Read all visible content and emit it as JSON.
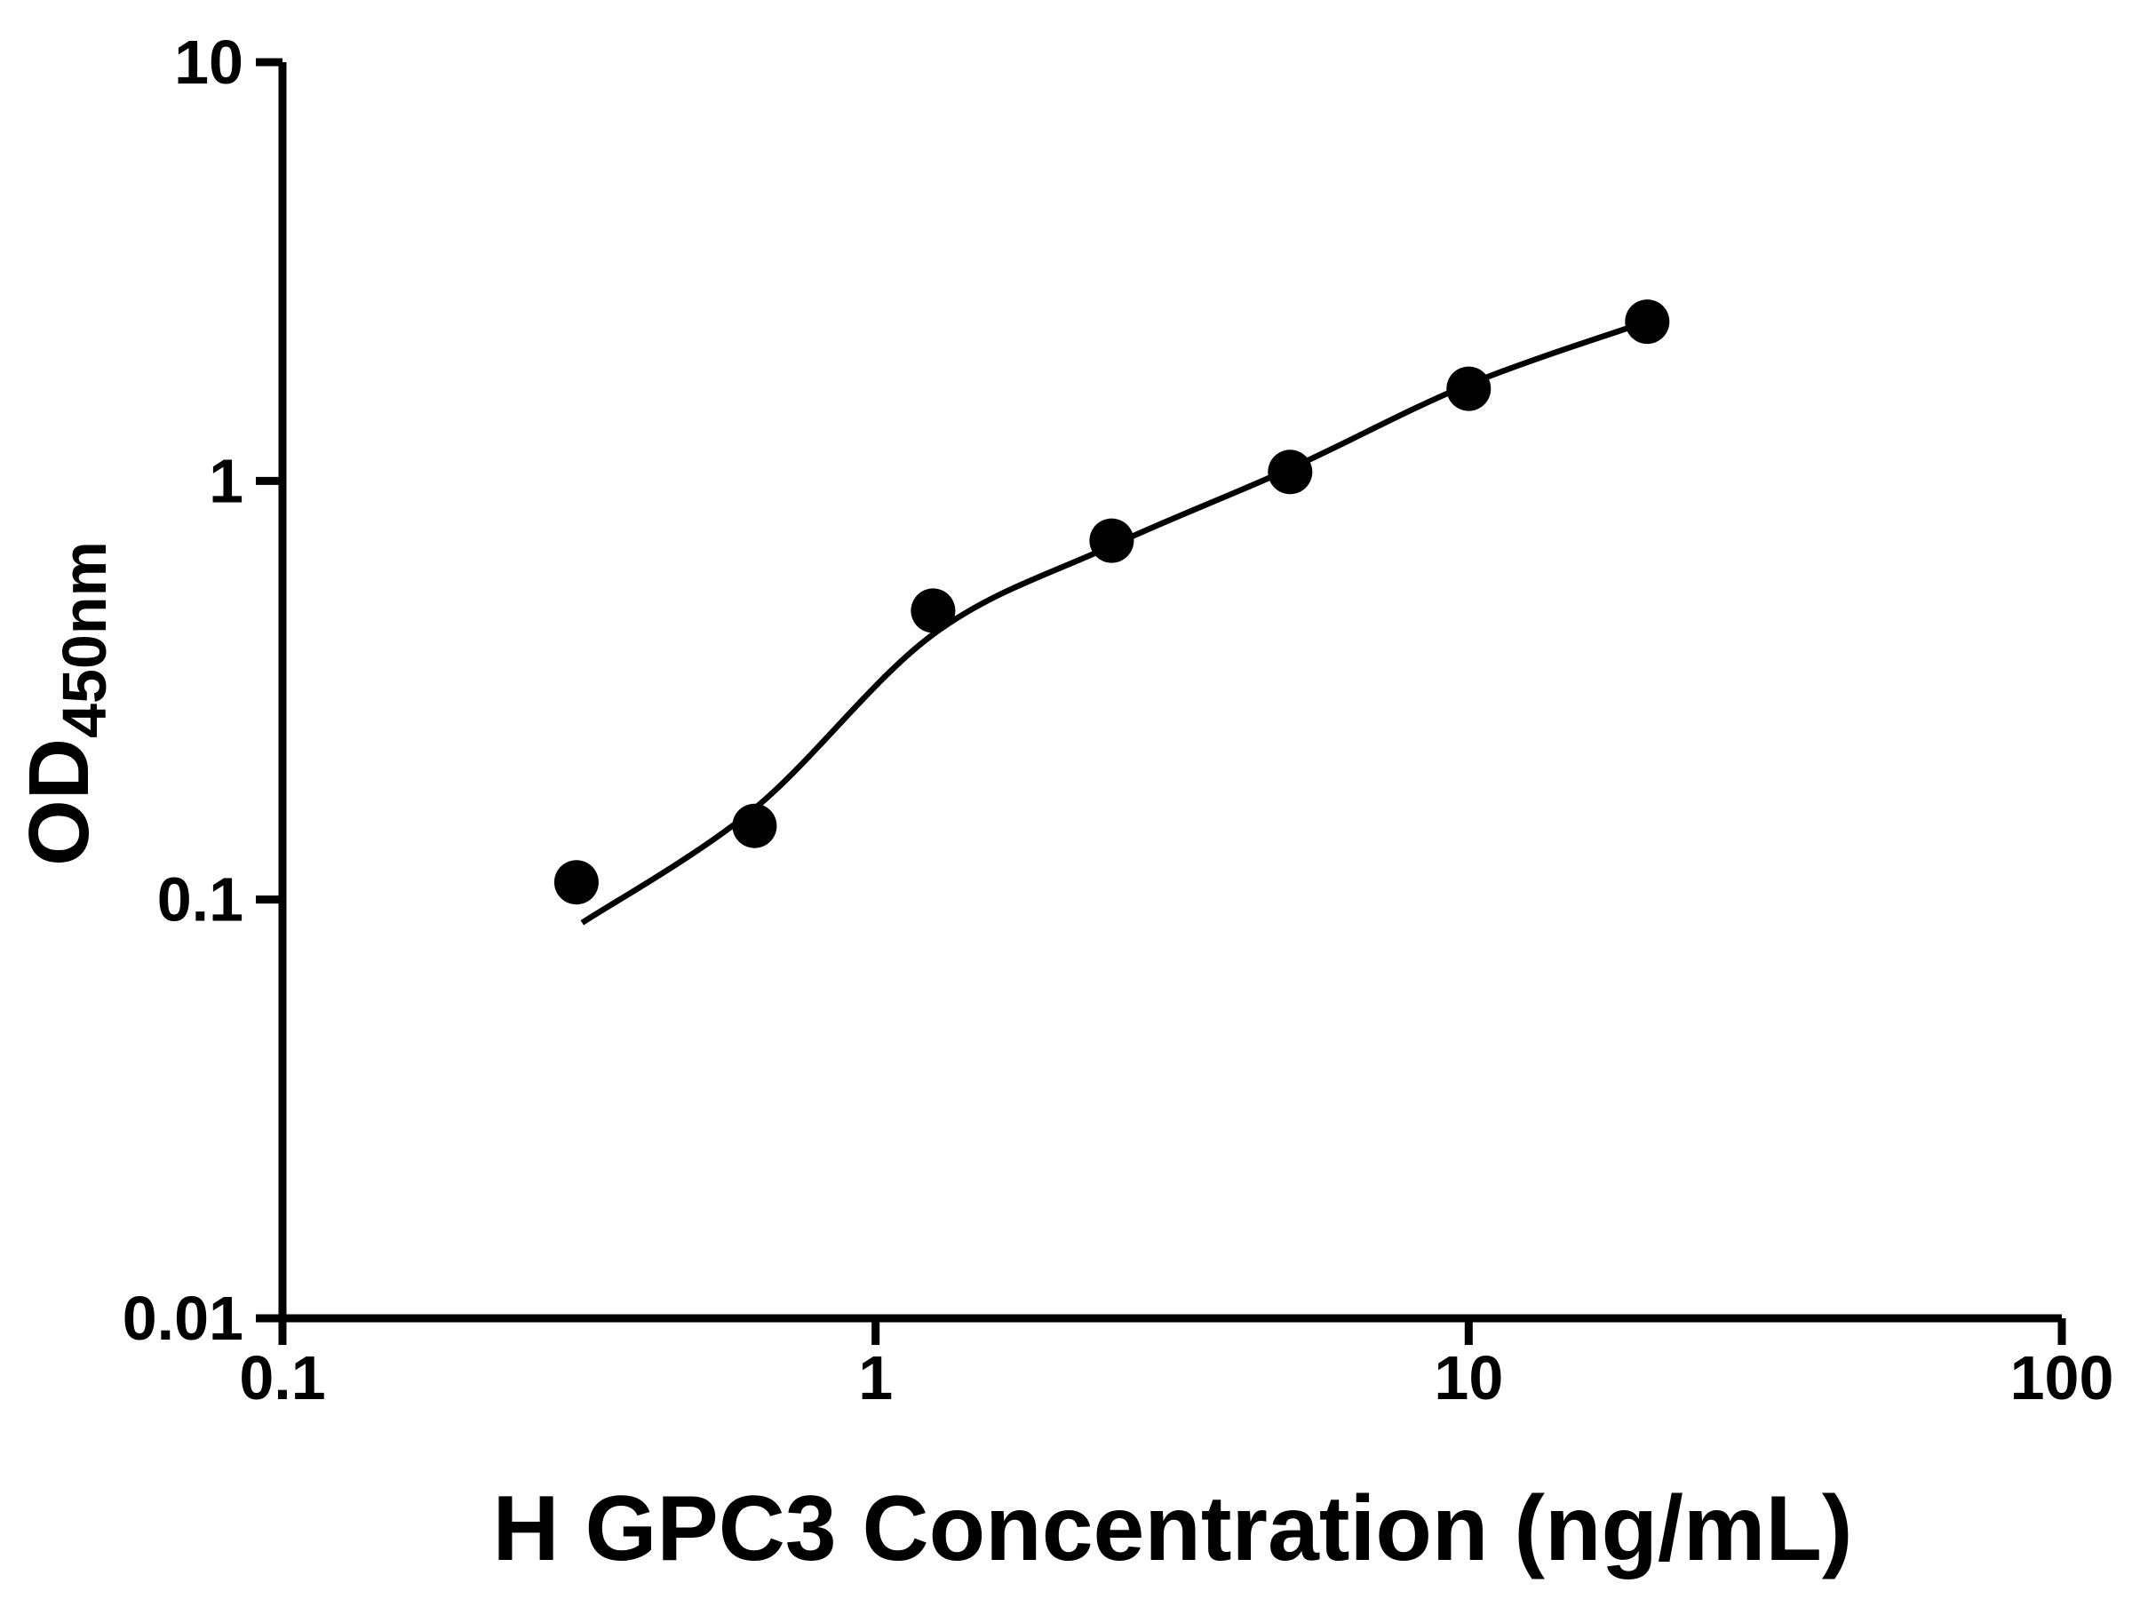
{
  "figure": {
    "background": "#ffffff"
  },
  "chart_data": {
    "type": "scatter",
    "title": "",
    "xlabel": "H GPC3 Concentration (ng/mL)",
    "ylabel_main": "OD",
    "ylabel_sub": "450nm",
    "x_scale": "log",
    "y_scale": "log",
    "xlim": [
      0.1,
      100
    ],
    "ylim": [
      0.01,
      10
    ],
    "x_ticks": [
      0.1,
      1,
      10,
      100
    ],
    "x_tick_labels": [
      "0.1",
      "1",
      "10",
      "100"
    ],
    "y_ticks": [
      0.01,
      0.1,
      1,
      10
    ],
    "y_tick_labels": [
      "0.01",
      "0.1",
      "1",
      "10"
    ],
    "grid": false,
    "legend": "none",
    "points": {
      "x": [
        0.313,
        0.625,
        1.25,
        2.5,
        5,
        10,
        20
      ],
      "y": [
        0.11,
        0.15,
        0.49,
        0.72,
        1.05,
        1.66,
        2.4
      ]
    },
    "fit_curve": {
      "x": [
        0.32,
        0.625,
        1.25,
        2.5,
        5,
        10,
        20.5
      ],
      "y": [
        0.088,
        0.165,
        0.43,
        0.7,
        1.07,
        1.7,
        2.43
      ]
    },
    "marker_color": "#000000",
    "line_color": "#000000",
    "axis_color": "#000000"
  }
}
